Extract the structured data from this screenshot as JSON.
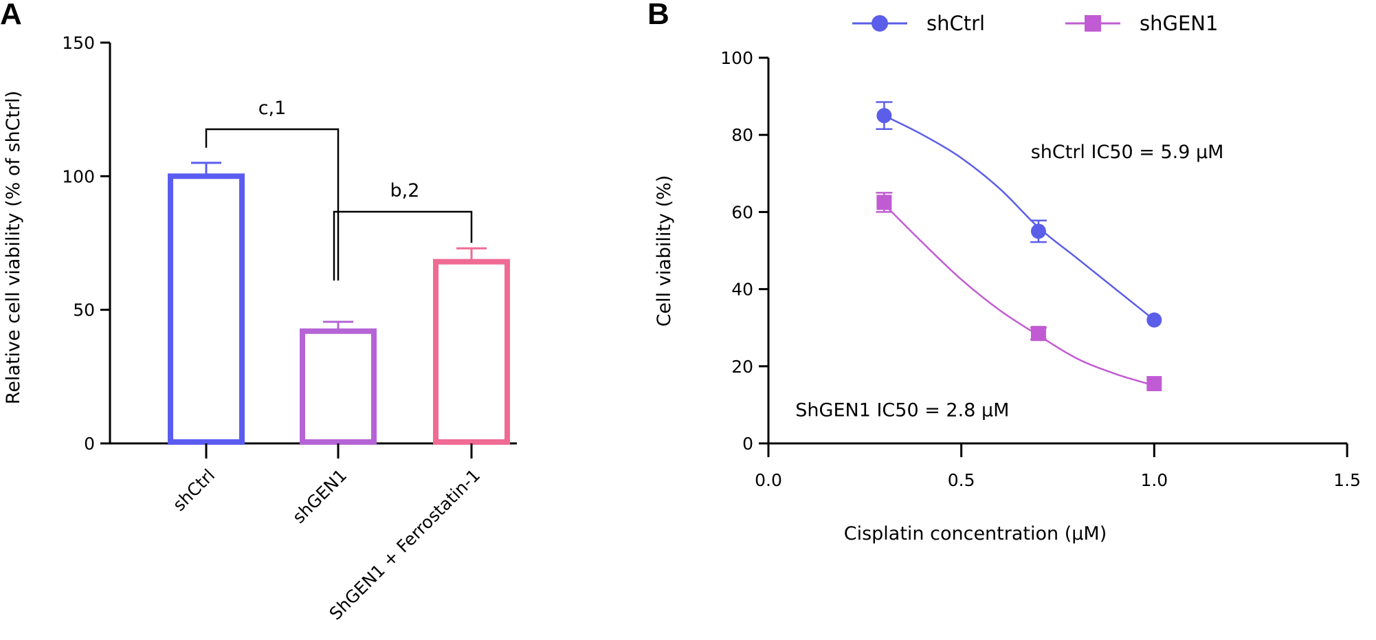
{
  "panels": {
    "a_label": "A",
    "b_label": "B"
  },
  "chart_data": [
    {
      "type": "bar",
      "title": "",
      "xlabel": "",
      "ylabel": "Relative cell viability (% of shCtrl)",
      "ylim": [
        0,
        150
      ],
      "yticks": [
        "0",
        "50",
        "100",
        "150"
      ],
      "grid": false,
      "categories": [
        "shCtrl",
        "shGEN1",
        "ShGEN1 + Ferrostatin-1"
      ],
      "values": [
        100,
        42,
        68
      ],
      "errors": [
        5,
        3.5,
        5
      ],
      "colors": [
        "#5a5cf0",
        "#b564d6",
        "#ef6b94"
      ],
      "significance": [
        {
          "label": "c,1",
          "from": 0,
          "to": 1
        },
        {
          "label": "b,2",
          "from": 1,
          "to": 2
        }
      ]
    },
    {
      "type": "line",
      "title": "",
      "xlabel": "Cisplatin concentration (μM)",
      "ylabel": "Cell viability (%)",
      "xlim": [
        0,
        1.5
      ],
      "ylim": [
        0,
        100
      ],
      "xticks": [
        "0.0",
        "0.5",
        "1.0",
        "1.5"
      ],
      "yticks": [
        "0",
        "20",
        "40",
        "60",
        "80",
        "100"
      ],
      "grid": false,
      "legend_position": "top",
      "series": [
        {
          "name": "shCtrl",
          "marker": "circle",
          "color": "#5b5ee8",
          "x": [
            0.3,
            0.7,
            1.0
          ],
          "y": [
            85,
            55,
            32
          ],
          "err": [
            3.5,
            2.8,
            1
          ],
          "fit": [
            [
              0.3,
              85
            ],
            [
              0.4,
              80
            ],
            [
              0.5,
              74
            ],
            [
              0.6,
              66
            ],
            [
              0.7,
              56
            ],
            [
              0.8,
              48
            ],
            [
              0.9,
              40
            ],
            [
              1.0,
              32
            ]
          ]
        },
        {
          "name": "shGEN1",
          "marker": "square",
          "color": "#c15bd3",
          "x": [
            0.3,
            0.7,
            1.0
          ],
          "y": [
            62.5,
            28.5,
            15.5
          ],
          "err": [
            2.5,
            1.5,
            1
          ],
          "fit": [
            [
              0.3,
              62
            ],
            [
              0.4,
              52
            ],
            [
              0.5,
              42.5
            ],
            [
              0.6,
              34.5
            ],
            [
              0.7,
              28
            ],
            [
              0.8,
              22
            ],
            [
              0.9,
              18
            ],
            [
              1.0,
              15
            ]
          ]
        }
      ],
      "annotations": [
        {
          "text": "shCtrl IC50 = 5.9 μM",
          "x": 0.68,
          "y": 74
        },
        {
          "text": "ShGEN1 IC50 = 2.8 μM",
          "x": 0.07,
          "y": 7
        }
      ]
    }
  ]
}
